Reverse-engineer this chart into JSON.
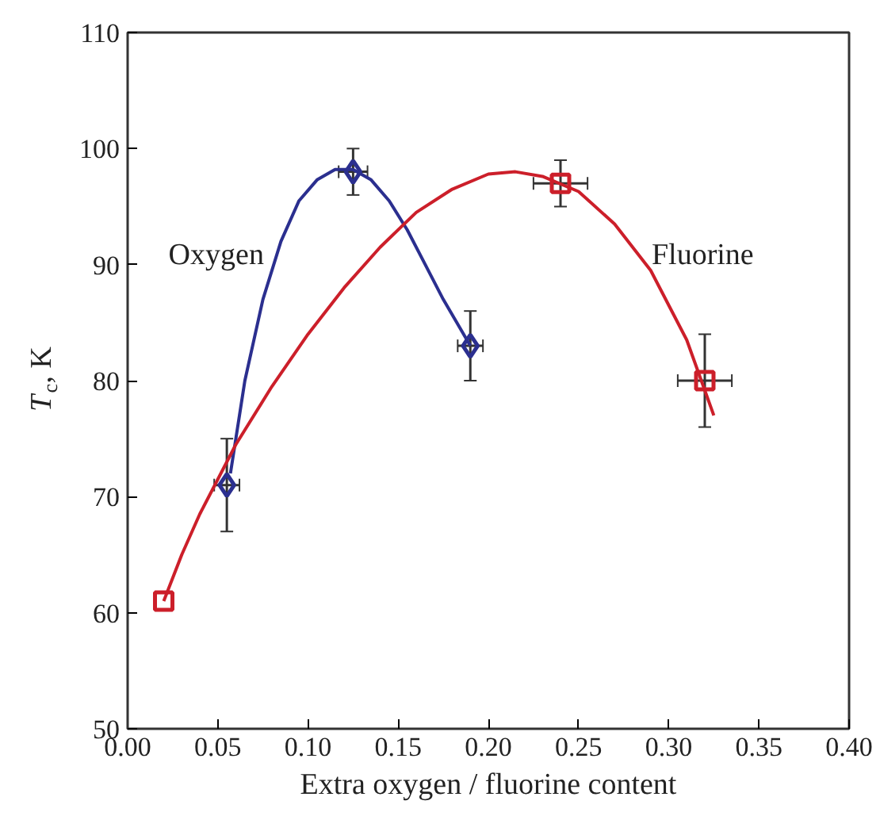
{
  "chart_data": {
    "type": "scatter",
    "xlabel": "Extra oxygen / fluorine content",
    "ylabel": "T$_{c}$, K",
    "xlim": [
      0,
      0.4
    ],
    "ylim": [
      50,
      110
    ],
    "xticks": [
      {
        "value": 0,
        "label": "0.00"
      },
      {
        "value": 0.05,
        "label": "0.05"
      },
      {
        "value": 0.1,
        "label": "0.10"
      },
      {
        "value": 0.15,
        "label": "0.15"
      },
      {
        "value": 0.2,
        "label": "0.20"
      },
      {
        "value": 0.25,
        "label": "0.25"
      },
      {
        "value": 0.3,
        "label": "0.30"
      },
      {
        "value": 0.35,
        "label": "0.35"
      },
      {
        "value": 0.4,
        "label": "0.40"
      }
    ],
    "yticks": [
      50,
      60,
      70,
      80,
      90,
      100,
      110
    ],
    "grid": false,
    "series": [
      {
        "marker": "diamond",
        "color": "#2b2f8f",
        "x": [
          0.055,
          0.125,
          0.19
        ],
        "values": [
          71,
          98,
          83
        ],
        "errors": [
          4,
          2,
          3
        ],
        "xerrors": [
          0.007,
          0.008,
          0.007
        ]
      },
      {
        "marker": "square",
        "color": "#cc1f2a",
        "x": [
          0.02,
          0.24,
          0.32
        ],
        "values": [
          61,
          97,
          80
        ],
        "errors": [
          null,
          2,
          4
        ],
        "xerrors": [
          null,
          0.015,
          0.015
        ]
      },
      {
        "type": "line",
        "name": "Oxygen",
        "color": "#2b2f8f",
        "line_style": "solid",
        "x": [
          0.057,
          0.065,
          0.075,
          0.085,
          0.095,
          0.105,
          0.115,
          0.125,
          0.135,
          0.145,
          0.155,
          0.165,
          0.175,
          0.19
        ],
        "values": [
          72,
          80,
          87,
          92,
          95.5,
          97.3,
          98.2,
          98.2,
          97.3,
          95.5,
          93,
          90,
          87,
          83
        ]
      },
      {
        "type": "line",
        "name": "Fluorine",
        "color": "#cc1f2a",
        "line_style": "solid",
        "x": [
          0.02,
          0.03,
          0.04,
          0.06,
          0.08,
          0.1,
          0.12,
          0.14,
          0.16,
          0.18,
          0.2,
          0.215,
          0.23,
          0.25,
          0.27,
          0.29,
          0.31,
          0.325
        ],
        "values": [
          61,
          65,
          68.5,
          74.5,
          79.5,
          84,
          88,
          91.5,
          94.5,
          96.5,
          97.8,
          98,
          97.6,
          96.3,
          93.5,
          89.5,
          83.5,
          77
        ]
      }
    ]
  }
}
